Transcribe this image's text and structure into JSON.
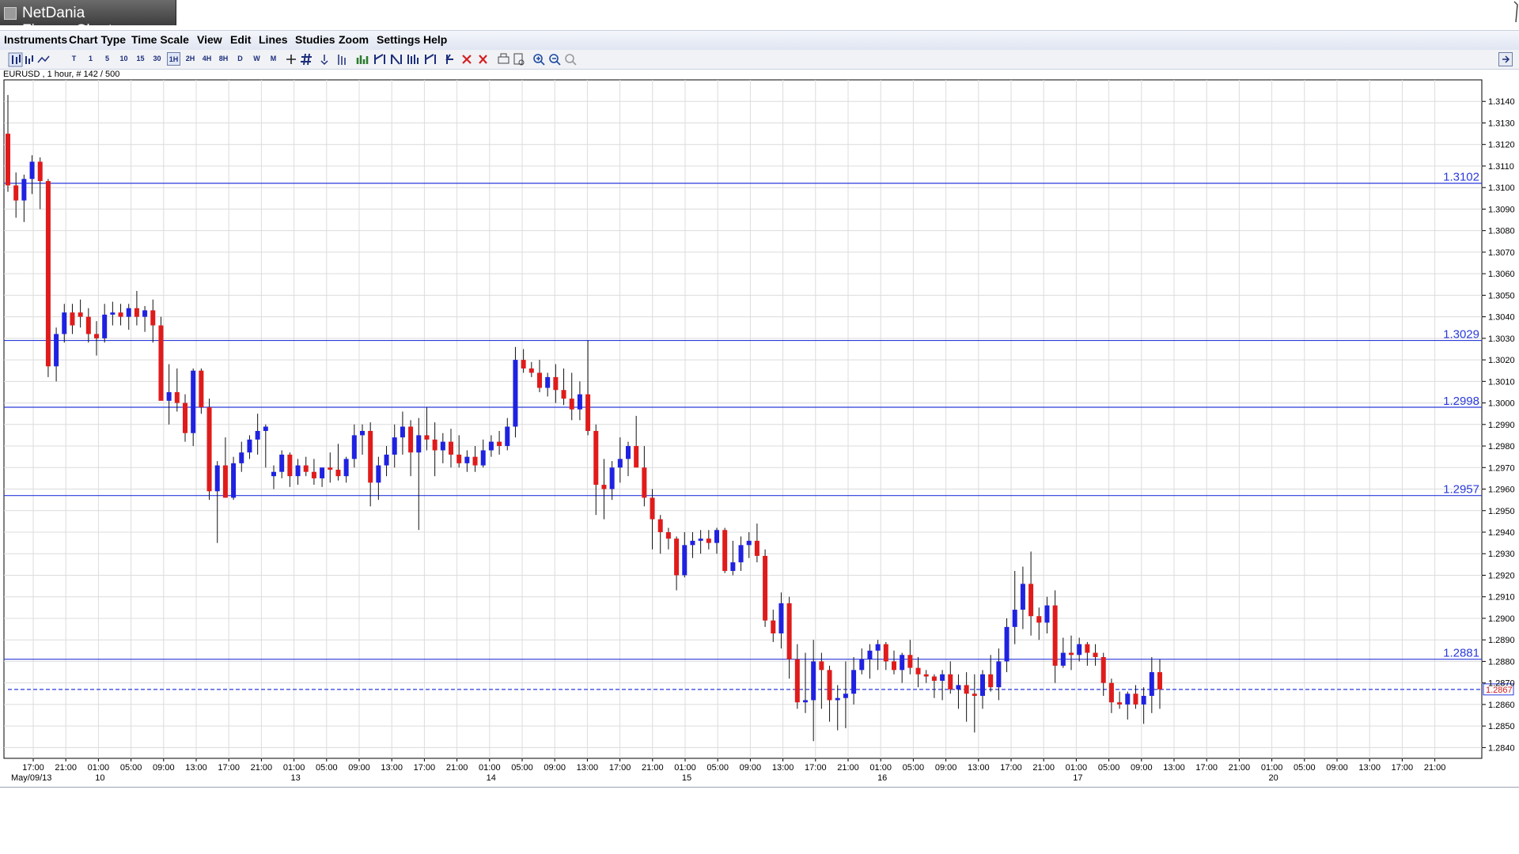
{
  "window": {
    "title": "NetDania FinanceChart"
  },
  "menu": [
    "Instruments",
    "Chart Type",
    "Time Scale",
    "View",
    "Edit",
    "Lines",
    "Studies",
    "Zoom",
    "Settings",
    "Help"
  ],
  "toolbar": {
    "time_buttons": [
      "T",
      "1",
      "5",
      "10",
      "15",
      "30",
      "1H",
      "2H",
      "4H",
      "8H",
      "D",
      "W",
      "M"
    ],
    "selected": "1H"
  },
  "instrument_label": "EURUSD , 1 hour, # 142 / 500",
  "chart_data": {
    "type": "candlestick",
    "instrument": "EURUSD",
    "interval": "1 hour",
    "ylim": [
      1.2835,
      1.315
    ],
    "y_ticks": [
      "1.3140",
      "1.3130",
      "1.3120",
      "1.3110",
      "1.3100",
      "1.3090",
      "1.3080",
      "1.3070",
      "1.3060",
      "1.3050",
      "1.3040",
      "1.3030",
      "1.3020",
      "1.3010",
      "1.3000",
      "1.2990",
      "1.2980",
      "1.2970",
      "1.2960",
      "1.2950",
      "1.2940",
      "1.2930",
      "1.2920",
      "1.2910",
      "1.2900",
      "1.2890",
      "1.2880",
      "1.2870",
      "1.2860",
      "1.2850",
      "1.2840"
    ],
    "x_ticks": [
      "17:00",
      "21:00",
      "01:00",
      "05:00",
      "09:00",
      "13:00",
      "17:00",
      "21:00",
      "01:00",
      "05:00",
      "09:00",
      "13:00",
      "17:00",
      "21:00",
      "01:00",
      "05:00",
      "09:00",
      "13:00",
      "17:00",
      "21:00",
      "01:00",
      "05:00",
      "09:00",
      "13:00",
      "17:00",
      "21:00",
      "01:00",
      "05:00",
      "09:00",
      "13:00",
      "17:00",
      "21:00",
      "01:00",
      "05:00",
      "09:00",
      "13:00",
      "17:00",
      "21:00",
      "01:00",
      "05:00",
      "09:00",
      "13:00",
      "17:00",
      "21:00"
    ],
    "x_tick_hours": [
      0,
      4,
      8,
      12,
      16,
      20,
      24,
      28,
      32,
      36,
      40,
      44,
      48,
      52,
      56,
      60,
      64,
      68,
      72,
      76,
      80,
      84,
      88,
      92,
      96,
      100,
      104,
      108,
      112,
      116,
      120,
      124,
      128,
      132,
      136,
      140,
      144,
      148,
      152,
      156,
      160,
      164,
      168,
      172
    ],
    "x_gaps_after_index": [
      7,
      31
    ],
    "date_labels": [
      {
        "label": "May/09/13",
        "tick": 0
      },
      {
        "label": "10",
        "tick": 2
      },
      {
        "label": "13",
        "tick": 8
      },
      {
        "label": "14",
        "tick": 14
      },
      {
        "label": "15",
        "tick": 20
      },
      {
        "label": "16",
        "tick": 26
      },
      {
        "label": "17",
        "tick": 32
      },
      {
        "label": "20",
        "tick": 38
      }
    ],
    "horizontal_lines": [
      {
        "value": 1.3102,
        "label": "1.3102"
      },
      {
        "value": 1.3029,
        "label": "1.3029"
      },
      {
        "value": 1.2998,
        "label": "1.2998"
      },
      {
        "value": 1.2957,
        "label": "1.2957"
      },
      {
        "value": 1.2881,
        "label": "1.2881"
      }
    ],
    "current_price": {
      "value": 1.2867,
      "label": "1.2867"
    },
    "candles": [
      [
        1.3125,
        1.3143,
        1.3098,
        1.3101
      ],
      [
        1.3101,
        1.3107,
        1.3086,
        1.3094
      ],
      [
        1.3094,
        1.3106,
        1.3084,
        1.3104
      ],
      [
        1.3104,
        1.3115,
        1.3097,
        1.3112
      ],
      [
        1.3112,
        1.3114,
        1.309,
        1.3103
      ],
      [
        1.3103,
        1.3104,
        1.3012,
        1.3017
      ],
      [
        1.3017,
        1.3035,
        1.301,
        1.3032
      ],
      [
        1.3032,
        1.3046,
        1.3028,
        1.3042
      ],
      [
        1.3042,
        1.3046,
        1.3032,
        1.3036
      ],
      [
        1.3042,
        1.3048,
        1.3035,
        1.304
      ],
      [
        1.304,
        1.3044,
        1.3028,
        1.3032
      ],
      [
        1.3032,
        1.3038,
        1.3022,
        1.303
      ],
      [
        1.303,
        1.3046,
        1.3028,
        1.3041
      ],
      [
        1.3041,
        1.3047,
        1.3036,
        1.3042
      ],
      [
        1.3042,
        1.3046,
        1.3036,
        1.304
      ],
      [
        1.304,
        1.3046,
        1.3034,
        1.3044
      ],
      [
        1.3044,
        1.3052,
        1.3036,
        1.304
      ],
      [
        1.304,
        1.3045,
        1.3033,
        1.3043
      ],
      [
        1.3043,
        1.3048,
        1.3028,
        1.3036
      ],
      [
        1.3036,
        1.304,
        1.3003,
        1.3001
      ],
      [
        1.3001,
        1.3018,
        1.299,
        1.3005
      ],
      [
        1.3005,
        1.3016,
        1.2996,
        1.3
      ],
      [
        1.3,
        1.3004,
        1.2982,
        1.2986
      ],
      [
        1.2986,
        1.3016,
        1.298,
        1.3015
      ],
      [
        1.3015,
        1.3016,
        1.2995,
        1.2998
      ],
      [
        1.2998,
        1.3002,
        1.2955,
        1.2959
      ],
      [
        1.2959,
        1.2973,
        1.2935,
        1.2971
      ],
      [
        1.2971,
        1.2984,
        1.2956,
        1.2956
      ],
      [
        1.2956,
        1.2975,
        1.2955,
        1.2972
      ],
      [
        1.2972,
        1.2982,
        1.2968,
        1.2977
      ],
      [
        1.2977,
        1.2985,
        1.2974,
        1.2983
      ],
      [
        1.2983,
        1.2995,
        1.2976,
        1.2987
      ],
      [
        1.2987,
        1.299,
        1.297,
        1.2989
      ],
      [
        1.2966,
        1.2971,
        1.296,
        1.2968
      ],
      [
        1.2968,
        1.2978,
        1.2965,
        1.2976
      ],
      [
        1.2976,
        1.2977,
        1.2961,
        1.2966
      ],
      [
        1.2966,
        1.2974,
        1.2962,
        1.2971
      ],
      [
        1.2971,
        1.2975,
        1.2966,
        1.2968
      ],
      [
        1.2968,
        1.2974,
        1.2962,
        1.2965
      ],
      [
        1.2965,
        1.297,
        1.2961,
        1.297
      ],
      [
        1.297,
        1.2977,
        1.2963,
        1.2969
      ],
      [
        1.2969,
        1.2981,
        1.2964,
        1.2966
      ],
      [
        1.2966,
        1.2975,
        1.2963,
        1.2974
      ],
      [
        1.2974,
        1.299,
        1.297,
        1.2985
      ],
      [
        1.2985,
        1.299,
        1.2976,
        1.2987
      ],
      [
        1.2987,
        1.2991,
        1.2952,
        1.2963
      ],
      [
        1.2963,
        1.2975,
        1.2955,
        1.2971
      ],
      [
        1.2971,
        1.298,
        1.2966,
        1.2976
      ],
      [
        1.2976,
        1.299,
        1.297,
        1.2984
      ],
      [
        1.2984,
        1.2996,
        1.2976,
        1.2989
      ],
      [
        1.2989,
        1.2992,
        1.2966,
        1.2977
      ],
      [
        1.2977,
        1.2993,
        1.2941,
        1.2985
      ],
      [
        1.2985,
        1.2998,
        1.2978,
        1.2983
      ],
      [
        1.2983,
        1.2991,
        1.2966,
        1.2978
      ],
      [
        1.2978,
        1.2986,
        1.2972,
        1.2982
      ],
      [
        1.2982,
        1.2988,
        1.297,
        1.2976
      ],
      [
        1.2976,
        1.2985,
        1.297,
        1.2972
      ],
      [
        1.2972,
        1.2978,
        1.2968,
        1.2975
      ],
      [
        1.2975,
        1.298,
        1.2968,
        1.2971
      ],
      [
        1.2971,
        1.2983,
        1.297,
        1.2978
      ],
      [
        1.2978,
        1.2985,
        1.2975,
        1.2982
      ],
      [
        1.2982,
        1.2987,
        1.2976,
        1.298
      ],
      [
        1.298,
        1.2993,
        1.2978,
        1.2989
      ],
      [
        1.2989,
        1.3026,
        1.2984,
        1.302
      ],
      [
        1.302,
        1.3025,
        1.3014,
        1.3016
      ],
      [
        1.3016,
        1.3019,
        1.3012,
        1.3014
      ],
      [
        1.3014,
        1.302,
        1.3005,
        1.3007
      ],
      [
        1.3007,
        1.3014,
        1.3003,
        1.3012
      ],
      [
        1.3012,
        1.3018,
        1.3,
        1.3006
      ],
      [
        1.3006,
        1.3016,
        1.2999,
        1.3002
      ],
      [
        1.3002,
        1.3014,
        1.2992,
        1.2997
      ],
      [
        1.2997,
        1.301,
        1.2992,
        1.3004
      ],
      [
        1.3004,
        1.3029,
        1.2985,
        1.2987
      ],
      [
        1.2987,
        1.299,
        1.2948,
        1.2962
      ],
      [
        1.2962,
        1.2974,
        1.2946,
        1.296
      ],
      [
        1.296,
        1.2973,
        1.2955,
        1.297
      ],
      [
        1.297,
        1.2984,
        1.2963,
        1.2974
      ],
      [
        1.2974,
        1.2982,
        1.2966,
        1.298
      ],
      [
        1.298,
        1.2994,
        1.2973,
        1.297
      ],
      [
        1.297,
        1.298,
        1.2952,
        1.2956
      ],
      [
        1.2956,
        1.296,
        1.2932,
        1.2946
      ],
      [
        1.2946,
        1.2948,
        1.293,
        1.294
      ],
      [
        1.294,
        1.2942,
        1.2932,
        1.2937
      ],
      [
        1.2937,
        1.2938,
        1.2913,
        1.292
      ],
      [
        1.292,
        1.294,
        1.2919,
        1.2934
      ],
      [
        1.2934,
        1.294,
        1.2928,
        1.2936
      ],
      [
        1.2936,
        1.2941,
        1.293,
        1.2937
      ],
      [
        1.2937,
        1.2941,
        1.2932,
        1.2935
      ],
      [
        1.2935,
        1.2942,
        1.293,
        1.2941
      ],
      [
        1.2941,
        1.2942,
        1.2921,
        1.2922
      ],
      [
        1.2922,
        1.2936,
        1.292,
        1.2926
      ],
      [
        1.2926,
        1.2938,
        1.2922,
        1.2934
      ],
      [
        1.2934,
        1.294,
        1.2928,
        1.2936
      ],
      [
        1.2936,
        1.2944,
        1.2926,
        1.2929
      ],
      [
        1.2929,
        1.2932,
        1.2896,
        1.2899
      ],
      [
        1.2899,
        1.2904,
        1.2889,
        1.2893
      ],
      [
        1.2893,
        1.2912,
        1.2886,
        1.2907
      ],
      [
        1.2907,
        1.291,
        1.2872,
        1.2881
      ],
      [
        1.2881,
        1.2888,
        1.2858,
        1.2861
      ],
      [
        1.2861,
        1.2884,
        1.2856,
        1.2862
      ],
      [
        1.2862,
        1.289,
        1.2843,
        1.288
      ],
      [
        1.288,
        1.2884,
        1.2858,
        1.2876
      ],
      [
        1.2876,
        1.2878,
        1.2852,
        1.2862
      ],
      [
        1.2862,
        1.2869,
        1.2848,
        1.2863
      ],
      [
        1.2863,
        1.288,
        1.2849,
        1.2865
      ],
      [
        1.2865,
        1.2882,
        1.286,
        1.2876
      ],
      [
        1.2876,
        1.2886,
        1.2874,
        1.2881
      ],
      [
        1.2881,
        1.2888,
        1.2872,
        1.2885
      ],
      [
        1.2885,
        1.289,
        1.2876,
        1.2888
      ],
      [
        1.2888,
        1.2889,
        1.2876,
        1.288
      ],
      [
        1.288,
        1.2885,
        1.2874,
        1.2876
      ],
      [
        1.2876,
        1.2884,
        1.287,
        1.2883
      ],
      [
        1.2883,
        1.289,
        1.2874,
        1.2877
      ],
      [
        1.2877,
        1.2882,
        1.2868,
        1.2874
      ],
      [
        1.2874,
        1.2876,
        1.287,
        1.2873
      ],
      [
        1.2873,
        1.2874,
        1.2863,
        1.2871
      ],
      [
        1.2871,
        1.2876,
        1.2862,
        1.2874
      ],
      [
        1.2874,
        1.288,
        1.2865,
        1.2867
      ],
      [
        1.2867,
        1.2874,
        1.2858,
        1.2869
      ],
      [
        1.2869,
        1.2875,
        1.2852,
        1.2865
      ],
      [
        1.2865,
        1.2874,
        1.2847,
        1.2864
      ],
      [
        1.2864,
        1.2876,
        1.2858,
        1.2874
      ],
      [
        1.2874,
        1.2883,
        1.2866,
        1.2868
      ],
      [
        1.2868,
        1.2886,
        1.2862,
        1.288
      ],
      [
        1.288,
        1.29,
        1.2875,
        1.2896
      ],
      [
        1.2896,
        1.2922,
        1.2888,
        1.2904
      ],
      [
        1.2904,
        1.2924,
        1.2895,
        1.2916
      ],
      [
        1.2916,
        1.2931,
        1.2892,
        1.2901
      ],
      [
        1.2901,
        1.2905,
        1.289,
        1.2898
      ],
      [
        1.2898,
        1.291,
        1.2893,
        1.2906
      ],
      [
        1.2906,
        1.2913,
        1.287,
        1.2878
      ],
      [
        1.2878,
        1.2891,
        1.2877,
        1.2884
      ],
      [
        1.2884,
        1.2892,
        1.2876,
        1.2883
      ],
      [
        1.2883,
        1.2891,
        1.288,
        1.2888
      ],
      [
        1.2888,
        1.2889,
        1.2878,
        1.2884
      ],
      [
        1.2884,
        1.2888,
        1.2878,
        1.2882
      ],
      [
        1.2882,
        1.2884,
        1.2864,
        1.287
      ],
      [
        1.287,
        1.2872,
        1.2856,
        1.2861
      ],
      [
        1.2861,
        1.2866,
        1.2858,
        1.286
      ],
      [
        1.286,
        1.2866,
        1.2853,
        1.2865
      ],
      [
        1.2865,
        1.2869,
        1.2858,
        1.286
      ],
      [
        1.286,
        1.2868,
        1.2851,
        1.2864
      ],
      [
        1.2864,
        1.2882,
        1.2856,
        1.2875
      ],
      [
        1.2875,
        1.2881,
        1.2858,
        1.2867
      ]
    ]
  }
}
